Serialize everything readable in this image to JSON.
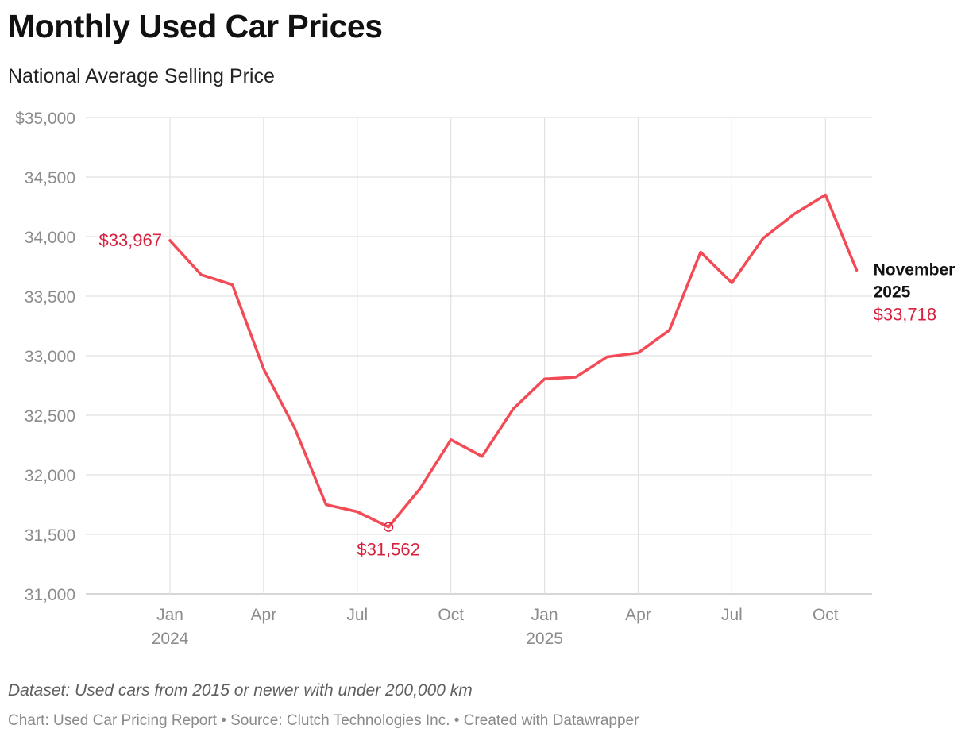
{
  "header": {
    "title": "Monthly Used Car Prices",
    "subtitle": "National Average Selling Price"
  },
  "footer": {
    "note": "Dataset: Used cars from 2015 or newer with under 200,000 km",
    "credit": "Chart: Used Car Pricing Report • Source: Clutch Technologies Inc. • Created with Datawrapper"
  },
  "colors": {
    "line": "#f24b56",
    "annotation": "#d81f3d",
    "grid": "#e1e1e1",
    "tick_text": "#8c8c8c"
  },
  "chart_data": {
    "type": "line",
    "title": "Monthly Used Car Prices",
    "subtitle": "National Average Selling Price",
    "xlabel": "",
    "ylabel": "",
    "ylim": [
      31000,
      35000
    ],
    "grid": true,
    "y_ticks": [
      35000,
      34500,
      34000,
      33500,
      33000,
      32500,
      32000,
      31500,
      31000
    ],
    "y_tick_labels": [
      "$35,000",
      "34,500",
      "34,000",
      "33,500",
      "33,000",
      "32,500",
      "32,000",
      "31,500",
      "31,000"
    ],
    "x_ticks": [
      {
        "month": "2024-01",
        "label": "Jan",
        "sublabel": "2024"
      },
      {
        "month": "2024-04",
        "label": "Apr",
        "sublabel": ""
      },
      {
        "month": "2024-07",
        "label": "Jul",
        "sublabel": ""
      },
      {
        "month": "2024-10",
        "label": "Oct",
        "sublabel": ""
      },
      {
        "month": "2025-01",
        "label": "Jan",
        "sublabel": "2025"
      },
      {
        "month": "2025-04",
        "label": "Apr",
        "sublabel": ""
      },
      {
        "month": "2025-07",
        "label": "Jul",
        "sublabel": ""
      },
      {
        "month": "2025-10",
        "label": "Oct",
        "sublabel": ""
      }
    ],
    "series": [
      {
        "x": [
          "2024-01",
          "2024-02",
          "2024-03",
          "2024-04",
          "2024-05",
          "2024-06",
          "2024-07",
          "2024-08",
          "2024-09",
          "2024-10",
          "2024-11",
          "2024-12",
          "2025-01",
          "2025-02",
          "2025-03",
          "2025-04",
          "2025-05",
          "2025-06",
          "2025-07",
          "2025-08",
          "2025-09",
          "2025-10",
          "2025-11"
        ],
        "values": [
          33967,
          33680,
          33595,
          32890,
          32390,
          31750,
          31690,
          31562,
          31880,
          32295,
          32155,
          32555,
          32805,
          32820,
          32990,
          33025,
          33215,
          33870,
          33612,
          33985,
          34190,
          34350,
          33718
        ]
      }
    ],
    "annotations": {
      "start": {
        "month": "2024-01",
        "text": "$33,967"
      },
      "low": {
        "month": "2024-08",
        "text": "$31,562"
      },
      "end": {
        "month": "2025-11",
        "title_line1": "November",
        "title_line2": "2025",
        "text": "$33,718"
      }
    }
  }
}
